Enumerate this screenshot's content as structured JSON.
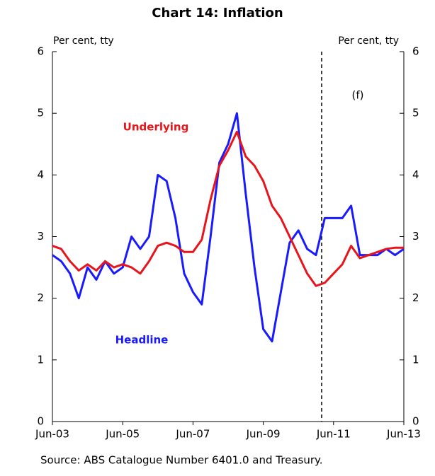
{
  "chart_data": {
    "type": "line",
    "title": "Chart 14: Inflation",
    "y_axis_label": "Per cent, tty",
    "y2_axis_label": "Per cent, tty",
    "annotations": [
      "Underlying",
      "Headline",
      "(f)"
    ],
    "source": "Source:   ABS Catalogue Number 6401.0 and Treasury.",
    "categories": [
      "Jun-03",
      null,
      null,
      null,
      null,
      null,
      null,
      null,
      "Jun-05",
      null,
      null,
      null,
      null,
      null,
      null,
      null,
      "Jun-07",
      null,
      null,
      null,
      null,
      null,
      null,
      null,
      "Jun-09",
      null,
      null,
      null,
      null,
      null,
      null,
      null,
      "Jun-11",
      null,
      null,
      null,
      null,
      null,
      null,
      null,
      "Jun-13"
    ],
    "series": [
      {
        "name": "Headline",
        "color": "#1a1aff",
        "values": [
          2.7,
          2.6,
          2.4,
          2.0,
          2.5,
          2.3,
          2.6,
          2.4,
          2.5,
          3.0,
          2.8,
          3.0,
          4.0,
          3.9,
          3.3,
          2.4,
          2.1,
          1.9,
          3.0,
          4.2,
          4.5,
          5.0,
          3.7,
          2.5,
          1.5,
          1.3,
          2.1,
          2.9,
          3.1,
          2.8,
          2.7,
          3.3,
          3.3,
          3.3,
          3.5,
          2.7,
          2.7,
          2.7,
          2.8,
          2.7,
          2.8
        ]
      },
      {
        "name": "Underlying",
        "color": "#e8141b",
        "values": [
          2.85,
          2.8,
          2.6,
          2.45,
          2.55,
          2.45,
          2.6,
          2.5,
          2.55,
          2.5,
          2.4,
          2.6,
          2.85,
          2.9,
          2.85,
          2.75,
          2.75,
          2.95,
          3.6,
          4.15,
          4.4,
          4.7,
          4.3,
          4.15,
          3.9,
          3.5,
          3.3,
          3.0,
          2.7,
          2.4,
          2.2,
          2.25,
          2.4,
          2.55,
          2.85,
          2.65,
          2.7,
          2.75,
          2.8,
          2.82,
          2.82
        ]
      }
    ],
    "ylim": [
      0,
      6
    ],
    "yticks": [
      0,
      1,
      2,
      3,
      4,
      5,
      6
    ],
    "y2lim": [
      0,
      6
    ],
    "y2ticks": [
      0,
      1,
      2,
      3,
      4,
      5,
      6
    ]
  }
}
